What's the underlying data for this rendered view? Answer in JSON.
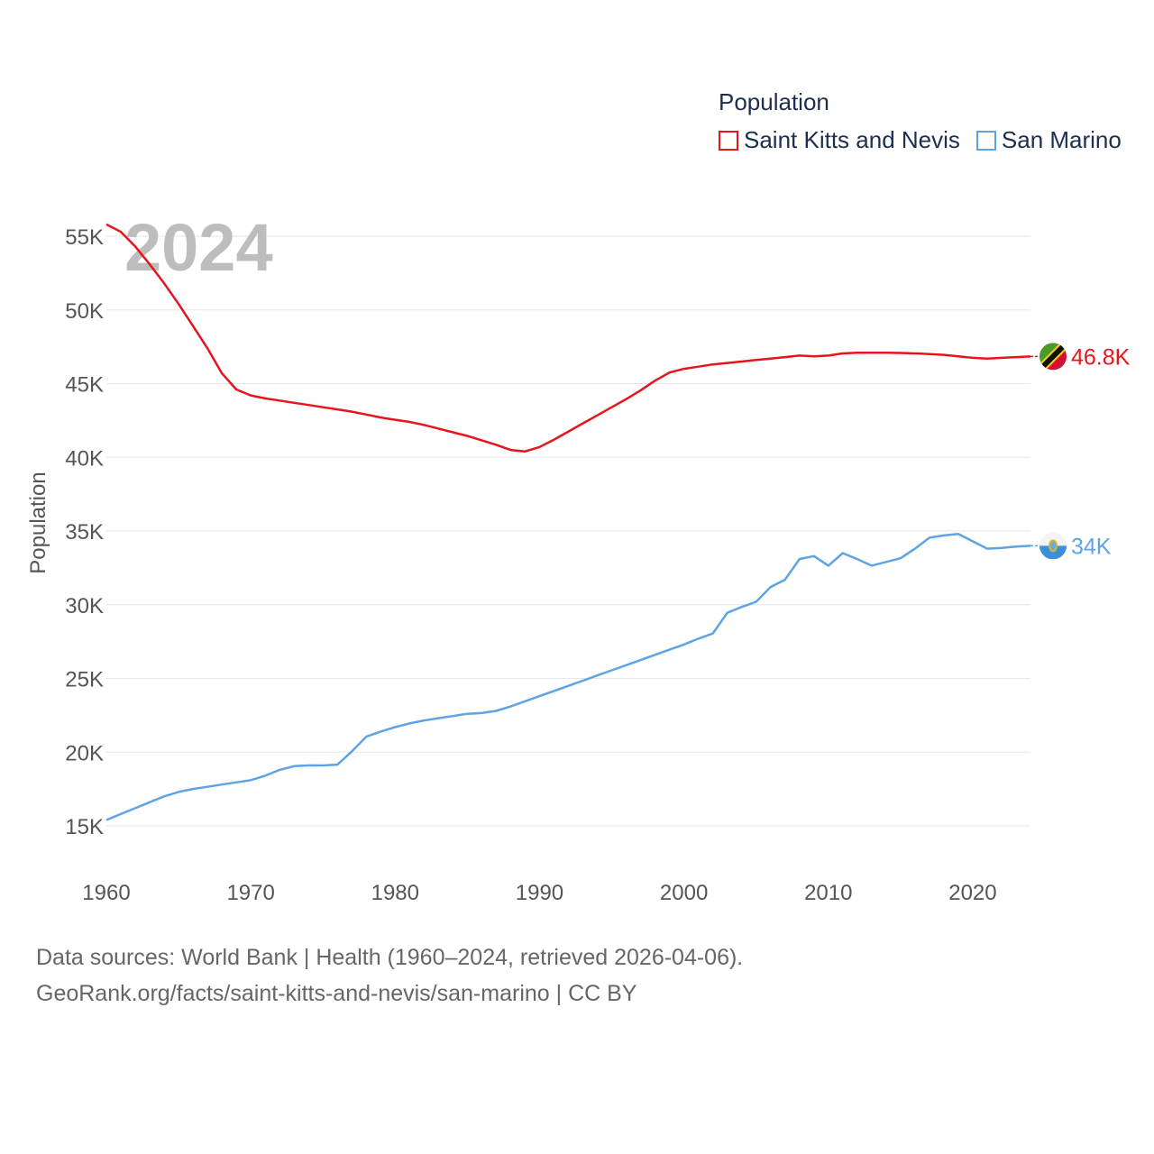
{
  "legend": {
    "title": "Population",
    "series": [
      {
        "name": "Saint Kitts and Nevis",
        "color": "#e8141c"
      },
      {
        "name": "San Marino",
        "color": "#5ea3e4"
      }
    ]
  },
  "year_label": "2024",
  "end_labels": [
    "46.8K",
    "34K"
  ],
  "icons": [
    "saint-kitts-and-nevis-flag-icon",
    "san-marino-flag-icon"
  ],
  "source": {
    "line1": "Data sources: World Bank | Health (1960–2024, retrieved 2026-04-06).",
    "line2": "GeoRank.org/facts/saint-kitts-and-nevis/san-marino | CC BY"
  },
  "chart_data": {
    "type": "line",
    "title": "Population",
    "xlabel": "",
    "ylabel": "Population",
    "xlim": [
      1960,
      2024
    ],
    "ylim": [
      12000,
      57000
    ],
    "x_ticks": [
      "1960",
      "1970",
      "1980",
      "1990",
      "2000",
      "2010",
      "2020"
    ],
    "y_ticks": [
      "15K",
      "20K",
      "25K",
      "30K",
      "35K",
      "40K",
      "45K",
      "50K",
      "55K"
    ],
    "y_tick_values": [
      15000,
      20000,
      25000,
      30000,
      35000,
      40000,
      45000,
      50000,
      55000
    ],
    "x": [
      1960,
      1961,
      1962,
      1963,
      1964,
      1965,
      1966,
      1967,
      1968,
      1969,
      1970,
      1971,
      1972,
      1973,
      1974,
      1975,
      1976,
      1977,
      1978,
      1979,
      1980,
      1981,
      1982,
      1983,
      1984,
      1985,
      1986,
      1987,
      1988,
      1989,
      1990,
      1991,
      1992,
      1993,
      1994,
      1995,
      1996,
      1997,
      1998,
      1999,
      2000,
      2001,
      2002,
      2003,
      2004,
      2005,
      2006,
      2007,
      2008,
      2009,
      2010,
      2011,
      2012,
      2013,
      2014,
      2015,
      2016,
      2017,
      2018,
      2019,
      2020,
      2021,
      2022,
      2023,
      2024
    ],
    "series": [
      {
        "name": "Saint Kitts and Nevis",
        "values": [
          55800,
          55300,
          54300,
          53100,
          51800,
          50400,
          48900,
          47400,
          45700,
          44600,
          44200,
          44000,
          43850,
          43700,
          43550,
          43400,
          43250,
          43100,
          42900,
          42700,
          42550,
          42400,
          42200,
          41950,
          41700,
          41450,
          41150,
          40850,
          40500,
          40400,
          40700,
          41200,
          41750,
          42300,
          42850,
          43400,
          43950,
          44550,
          45200,
          45750,
          46000,
          46150,
          46300,
          46400,
          46500,
          46600,
          46700,
          46800,
          46900,
          46850,
          46900,
          47050,
          47100,
          47100,
          47100,
          47080,
          47050,
          47000,
          46950,
          46850,
          46750,
          46700,
          46750,
          46800,
          46843
        ]
      },
      {
        "name": "San Marino",
        "values": [
          15400,
          15800,
          16200,
          16600,
          17000,
          17300,
          17500,
          17650,
          17800,
          17950,
          18100,
          18400,
          18800,
          19050,
          19100,
          19100,
          19150,
          20050,
          21050,
          21400,
          21700,
          21950,
          22150,
          22300,
          22450,
          22600,
          22650,
          22800,
          23100,
          23450,
          23800,
          24150,
          24500,
          24850,
          25200,
          25550,
          25900,
          26250,
          26600,
          26950,
          27300,
          27700,
          28050,
          29450,
          29850,
          30200,
          31200,
          31700,
          33100,
          33300,
          32650,
          33500,
          33100,
          32650,
          32900,
          33150,
          33800,
          34550,
          34700,
          34800,
          34300,
          33800,
          33850,
          33950,
          34000
        ]
      }
    ]
  }
}
